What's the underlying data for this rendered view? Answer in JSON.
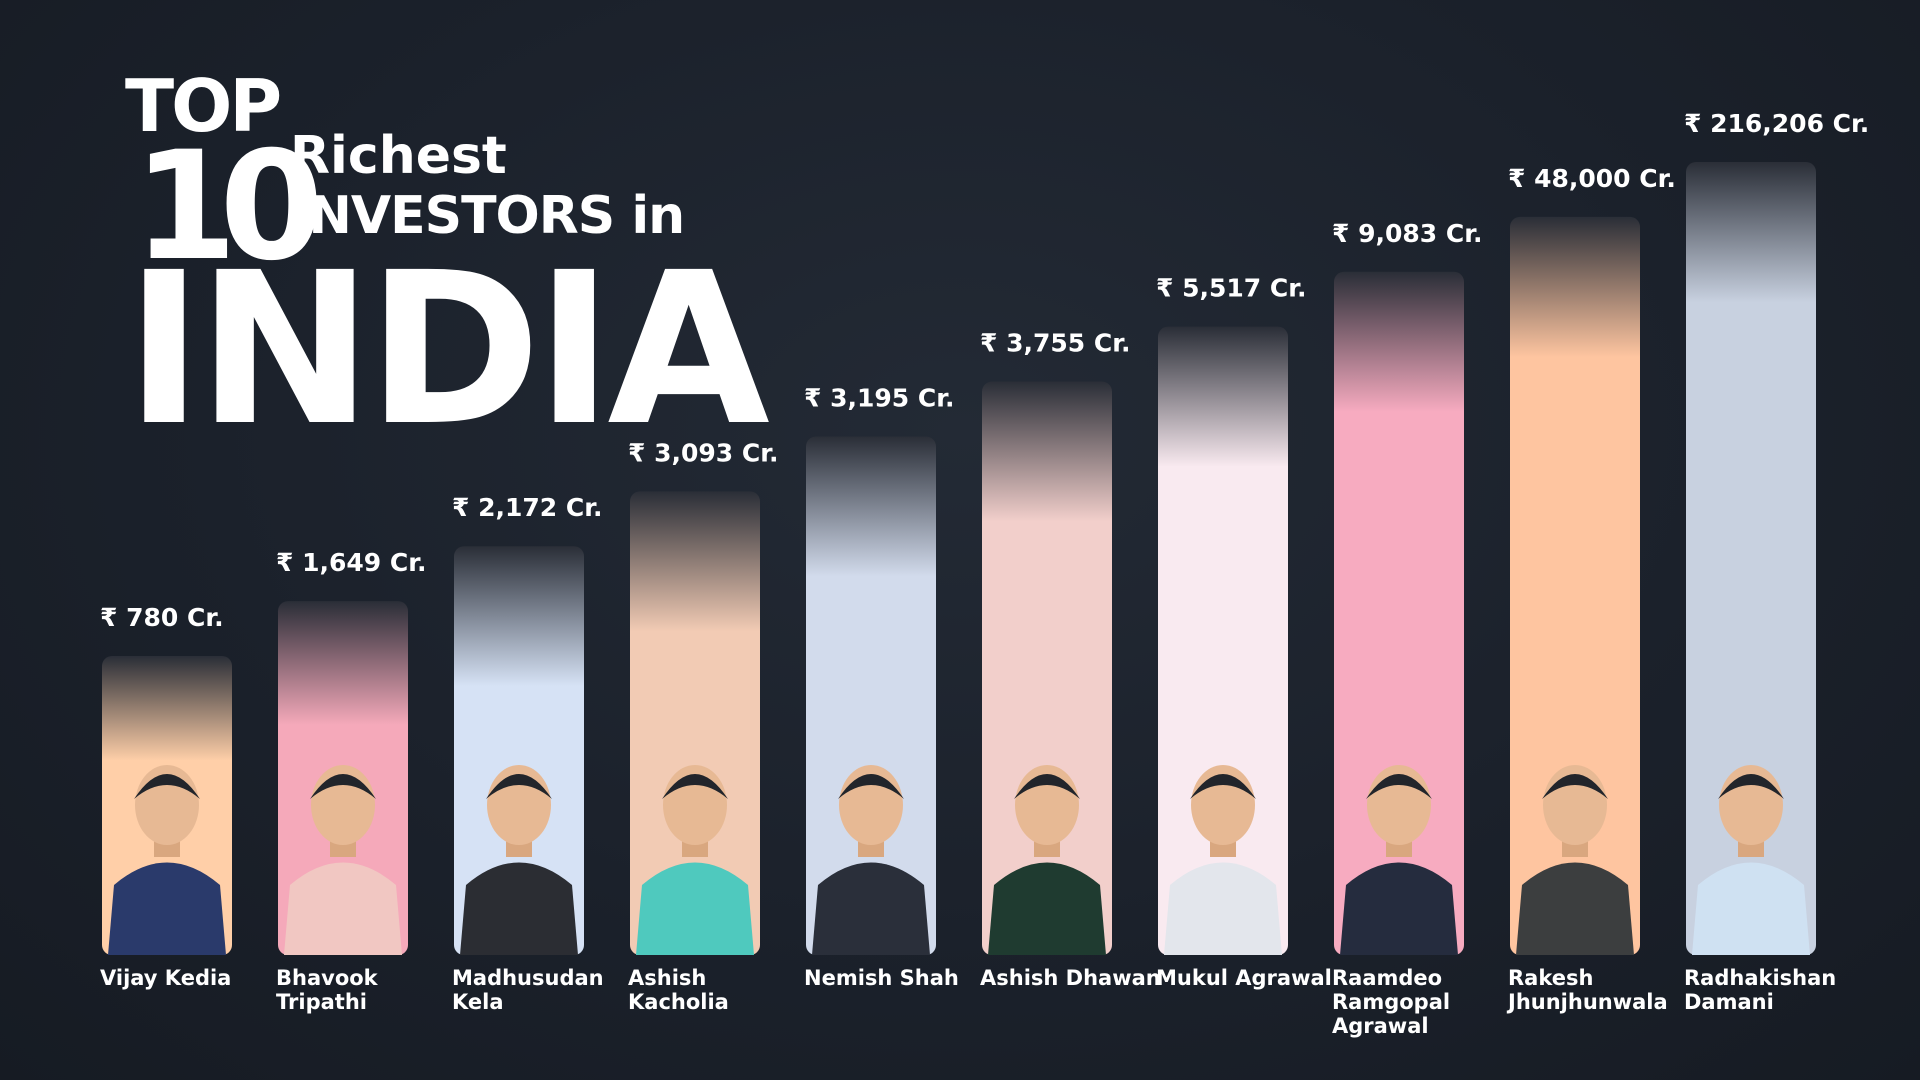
{
  "title": {
    "top": "TOP",
    "number": "10",
    "line1": "Richest",
    "line2": "INVESTORS in",
    "line3": "INDIA"
  },
  "chart_data": {
    "type": "bar",
    "categories": [
      "Vijay Kedia",
      "Bhavook Tripathi",
      "Madhusudan Kela",
      "Ashish Kacholia",
      "Nemish Shah",
      "Ashish Dhawan",
      "Mukul Agrawal",
      "Raamdeo Ramgopal Agrawal",
      "Rakesh Jhunjhunwala",
      "Radhakishan Damani"
    ],
    "values": [
      780,
      1649,
      2172,
      3093,
      3195,
      3755,
      5517,
      9083,
      48000,
      216206
    ],
    "value_labels": [
      "₹ 780 Cr.",
      "₹ 1,649 Cr.",
      "₹ 2,172 Cr.",
      "₹ 3,093 Cr.",
      "₹ 3,195 Cr.",
      "₹ 3,755 Cr.",
      "₹ 5,517 Cr.",
      "₹ 9,083 Cr.",
      "₹ 48,000 Cr.",
      "₹ 216,206 Cr."
    ],
    "name_lines": [
      [
        "Vijay Kedia"
      ],
      [
        "Bhavook",
        "Tripathi"
      ],
      [
        "Madhusudan",
        "Kela"
      ],
      [
        "Ashish",
        "Kacholia"
      ],
      [
        "Nemish Shah"
      ],
      [
        "Ashish Dhawan"
      ],
      [
        "Mukul Agrawal"
      ],
      [
        "Raamdeo",
        "Ramgopal",
        "Agrawal"
      ],
      [
        "Rakesh",
        "Jhunjhunwala"
      ],
      [
        "Radhakishan",
        "Damani"
      ]
    ],
    "bar_colors": [
      "#ffcfa8",
      "#f5a9ba",
      "#d6e2f5",
      "#f2cbb4",
      "#d2dbec",
      "#f2cfcb",
      "#f9eaf0",
      "#f7abc0",
      "#fec5a0",
      "#c8d1e0"
    ],
    "suit_colors": [
      "#2a3a6b",
      "#f1c7c2",
      "#2b2d33",
      "#4fc9be",
      "#2a2f3a",
      "#1f3b30",
      "#e3e6ec",
      "#252c3e",
      "#3c3e3f",
      "#cfe1f2"
    ],
    "scale": "rank-ordered, non-linear bar heights",
    "legend": "none",
    "grid": false
  }
}
